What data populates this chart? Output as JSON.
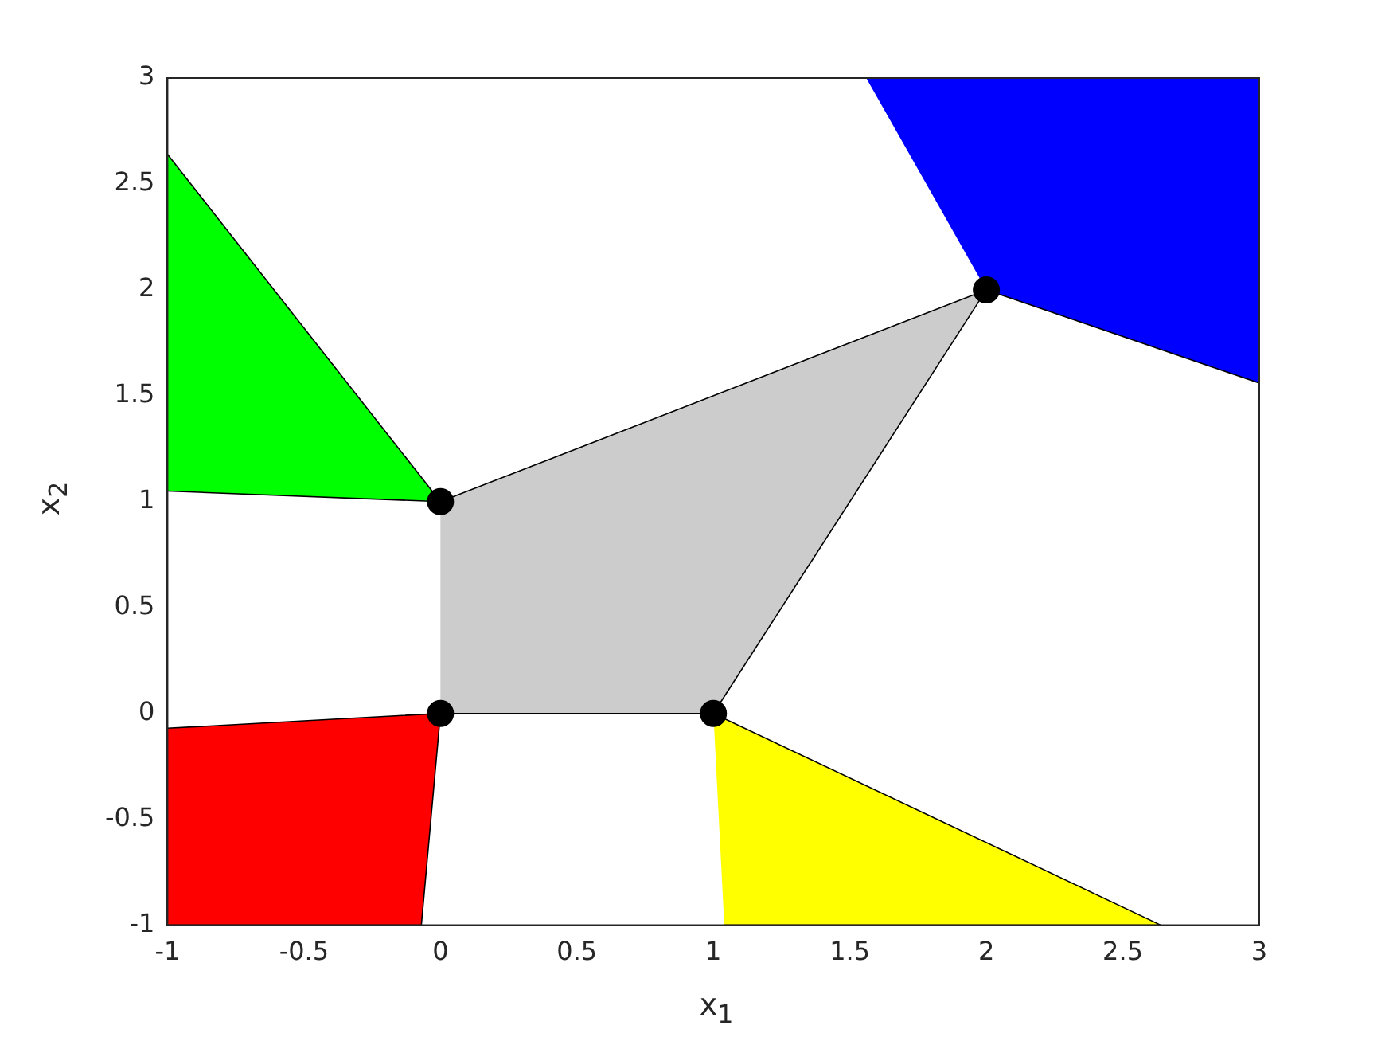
{
  "chart_data": {
    "type": "area",
    "xlabel": "x$_{1}$",
    "ylabel": "x$_{2}$",
    "xlim": [
      -1,
      3
    ],
    "ylim": [
      -1,
      3
    ],
    "xticks": [
      -1,
      -0.5,
      0,
      0.5,
      1,
      1.5,
      2,
      2.5,
      3
    ],
    "yticks": [
      -1,
      -0.5,
      0,
      0.5,
      1,
      1.5,
      2,
      2.5,
      3
    ],
    "grid": false,
    "legend": false,
    "series": [
      {
        "color": "#cccccc",
        "x": [
          0,
          1,
          2,
          0
        ],
        "values": [
          0,
          0,
          2,
          1
        ]
      },
      {
        "color": "#00ff00",
        "x": [
          -1,
          0,
          -1
        ],
        "values": [
          2.64,
          1,
          1.05
        ]
      },
      {
        "color": "#0000ff",
        "x": [
          1.56,
          3,
          3,
          2
        ],
        "values": [
          3,
          3,
          1.56,
          2
        ]
      },
      {
        "color": "#ff0000",
        "x": [
          -1,
          0,
          -0.07,
          -1
        ],
        "values": [
          -0.07,
          0,
          -1,
          -1
        ]
      },
      {
        "color": "#ffff00",
        "x": [
          1,
          2.64,
          1.04
        ],
        "values": [
          0,
          -1,
          -1
        ]
      },
      {
        "type": "scatter",
        "color": "#000000",
        "marker": "circle",
        "x": [
          0,
          1,
          0,
          2
        ],
        "values": [
          0,
          0,
          1,
          2
        ]
      }
    ]
  }
}
